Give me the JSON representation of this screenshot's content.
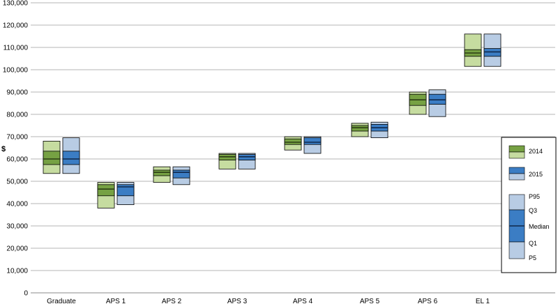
{
  "chart_data": {
    "type": "box",
    "ylabel": "$",
    "ylim": [
      0,
      130000
    ],
    "yticks": [
      0,
      10000,
      20000,
      30000,
      40000,
      50000,
      60000,
      70000,
      80000,
      90000,
      100000,
      110000,
      120000,
      130000
    ],
    "ytick_labels": [
      "0",
      "10,000",
      "20,000",
      "30,000",
      "40,000",
      "50,000",
      "60,000",
      "70,000",
      "80,000",
      "90,000",
      "100,000",
      "110,000",
      "120,000",
      "130,000"
    ],
    "grid": true,
    "legend_position": "right",
    "categories": [
      "Graduate",
      "APS 1",
      "APS 2",
      "APS 3",
      "APS 4",
      "APS 5",
      "APS 6",
      "EL 1"
    ],
    "series": [
      {
        "name": "2014",
        "colors": {
          "outer": "#c6dca0",
          "inner": "#76a143",
          "median": "#2b3d14"
        },
        "boxes": [
          {
            "p5": 53500,
            "q1": 57500,
            "median": 60000,
            "q3": 63500,
            "p95": 68000
          },
          {
            "p5": 38000,
            "q1": 43500,
            "median": 46500,
            "q3": 48500,
            "p95": 49500
          },
          {
            "p5": 49500,
            "q1": 52500,
            "median": 54000,
            "q3": 55000,
            "p95": 56500
          },
          {
            "p5": 55500,
            "q1": 59500,
            "median": 61000,
            "q3": 62000,
            "p95": 62500
          },
          {
            "p5": 64000,
            "q1": 66500,
            "median": 67500,
            "q3": 69000,
            "p95": 70000
          },
          {
            "p5": 70000,
            "q1": 72500,
            "median": 74000,
            "q3": 75000,
            "p95": 76000
          },
          {
            "p5": 80000,
            "q1": 84000,
            "median": 86500,
            "q3": 89000,
            "p95": 90000
          },
          {
            "p5": 101500,
            "q1": 106000,
            "median": 107500,
            "q3": 109000,
            "p95": 116000
          }
        ]
      },
      {
        "name": "2015",
        "colors": {
          "outer": "#b8cce4",
          "inner": "#3b7dc4",
          "median": "#10284a"
        },
        "boxes": [
          {
            "p5": 53500,
            "q1": 57500,
            "median": 60000,
            "q3": 63500,
            "p95": 69500
          },
          {
            "p5": 39500,
            "q1": 43500,
            "median": 47500,
            "q3": 48500,
            "p95": 49500
          },
          {
            "p5": 48500,
            "q1": 51500,
            "median": 54000,
            "q3": 55000,
            "p95": 56500
          },
          {
            "p5": 55500,
            "q1": 59500,
            "median": 61000,
            "q3": 62000,
            "p95": 62500
          },
          {
            "p5": 62500,
            "q1": 66500,
            "median": 67500,
            "q3": 69500,
            "p95": 70000
          },
          {
            "p5": 69500,
            "q1": 72500,
            "median": 74000,
            "q3": 75500,
            "p95": 76500
          },
          {
            "p5": 79000,
            "q1": 84500,
            "median": 86500,
            "q3": 89000,
            "p95": 91000
          },
          {
            "p5": 101500,
            "q1": 106000,
            "median": 108000,
            "q3": 109500,
            "p95": 116000
          }
        ]
      }
    ],
    "legend": {
      "series_labels": [
        "2014",
        "2015"
      ],
      "stat_labels": [
        "P95",
        "Q3",
        "Median",
        "Q1",
        "P5"
      ]
    }
  }
}
